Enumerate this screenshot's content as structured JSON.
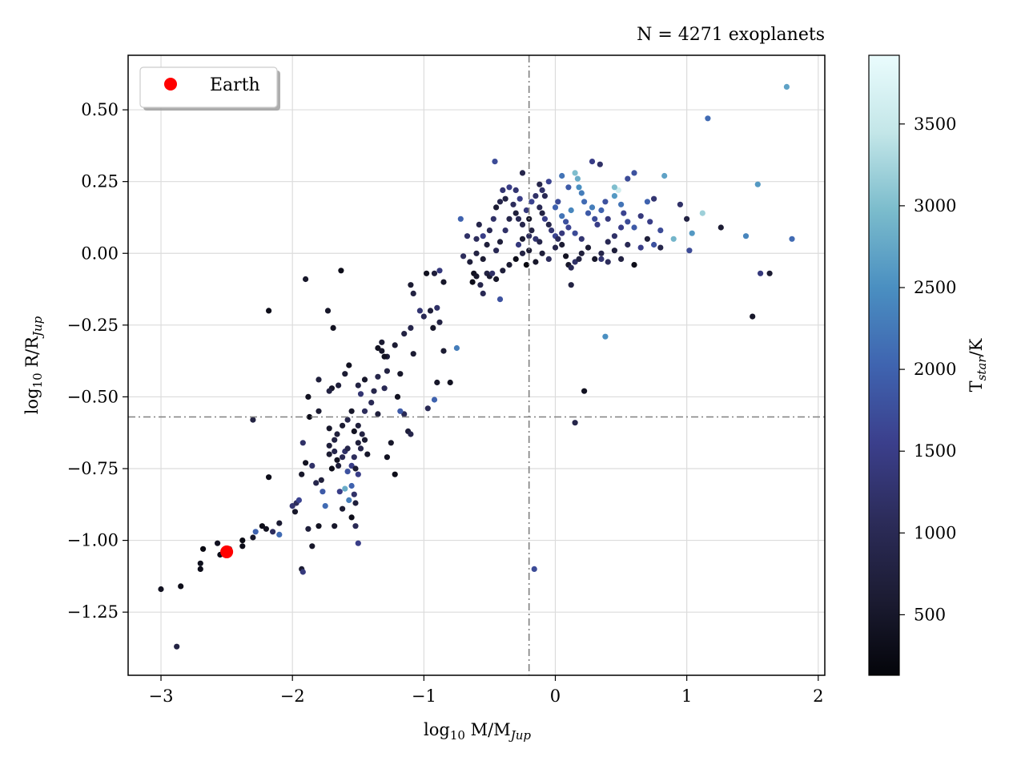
{
  "chart_data": {
    "type": "scatter",
    "title": "N = 4271 exoplanets",
    "xlabel": "log10 M/MJup",
    "ylabel": "log10 R/RJup",
    "xlim": [
      -3.25,
      2.05
    ],
    "ylim": [
      -1.47,
      0.69
    ],
    "xticks": [
      -3,
      -2,
      -1,
      0,
      1,
      2
    ],
    "xtick_labels": [
      "−3",
      "−2",
      "−1",
      "0",
      "1",
      "2"
    ],
    "yticks": [
      -1.25,
      -1.0,
      -0.75,
      -0.5,
      -0.25,
      0.0,
      0.25,
      0.5
    ],
    "ytick_labels": [
      "−1.25",
      "−1.00",
      "−0.75",
      "−0.50",
      "−0.25",
      "0.00",
      "0.25",
      "0.50"
    ],
    "grid": true,
    "reference_lines": {
      "vertical_x": -0.2,
      "horizontal_y": -0.57,
      "color": "#808080",
      "style": "dash-dot"
    },
    "legend": {
      "placement": "top-left",
      "entries": [
        {
          "label": "Earth",
          "color": "#ff0000"
        }
      ]
    },
    "highlight": {
      "name": "Earth",
      "x": -2.5,
      "y": -1.04,
      "color": "#ff0000"
    },
    "colorbar": {
      "label": "Tstar/K",
      "range": [
        130,
        3920
      ],
      "ticks": [
        500,
        1000,
        1500,
        2000,
        2500,
        3000,
        3500
      ],
      "colormap_stops": [
        "#04050a",
        "#1c1c33",
        "#2c2c5a",
        "#3b3f8c",
        "#3f64b0",
        "#4a8fc1",
        "#7bbccc",
        "#c3e6e8",
        "#eafcfd"
      ]
    },
    "points": [
      [
        -3.0,
        -1.17,
        400
      ],
      [
        -2.85,
        -1.16,
        300
      ],
      [
        -2.88,
        -1.37,
        800
      ],
      [
        -2.7,
        -1.1,
        300
      ],
      [
        -2.7,
        -1.08,
        350
      ],
      [
        -2.68,
        -1.03,
        200
      ],
      [
        -2.55,
        -1.05,
        300
      ],
      [
        -2.57,
        -1.01,
        400
      ],
      [
        -2.48,
        -1.03,
        600
      ],
      [
        -2.38,
        -1.02,
        300
      ],
      [
        -2.38,
        -1.0,
        250
      ],
      [
        -2.3,
        -0.99,
        500
      ],
      [
        -2.28,
        -0.97,
        2000
      ],
      [
        -2.23,
        -0.95,
        300
      ],
      [
        -2.2,
        -0.96,
        400
      ],
      [
        -2.15,
        -0.97,
        1100
      ],
      [
        -2.1,
        -0.94,
        600
      ],
      [
        -2.1,
        -0.98,
        2100
      ],
      [
        -2.0,
        -0.88,
        1300
      ],
      [
        -1.97,
        -0.87,
        1100
      ],
      [
        -1.95,
        -0.86,
        1600
      ],
      [
        -1.98,
        -0.9,
        500
      ],
      [
        -1.93,
        -1.1,
        600
      ],
      [
        -1.92,
        -1.11,
        1400
      ],
      [
        -1.88,
        -0.96,
        700
      ],
      [
        -1.85,
        -1.02,
        500
      ],
      [
        -1.8,
        -0.95,
        400
      ],
      [
        -1.75,
        -0.88,
        2100
      ],
      [
        -1.77,
        -0.83,
        1900
      ],
      [
        -1.82,
        -0.8,
        900
      ],
      [
        -1.78,
        -0.79,
        700
      ],
      [
        -1.85,
        -0.74,
        1200
      ],
      [
        -1.9,
        -0.73,
        400
      ],
      [
        -1.93,
        -0.77,
        500
      ],
      [
        -2.18,
        -0.78,
        300
      ],
      [
        -2.3,
        -0.58,
        800
      ],
      [
        -1.72,
        -0.67,
        700
      ],
      [
        -1.68,
        -0.65,
        800
      ],
      [
        -1.68,
        -0.69,
        900
      ],
      [
        -1.72,
        -0.7,
        600
      ],
      [
        -1.7,
        -0.75,
        300
      ],
      [
        -1.66,
        -0.72,
        400
      ],
      [
        -1.65,
        -0.74,
        700
      ],
      [
        -1.62,
        -0.71,
        1000
      ],
      [
        -1.6,
        -0.69,
        1200
      ],
      [
        -1.58,
        -0.68,
        900
      ],
      [
        -1.55,
        -0.74,
        1500
      ],
      [
        -1.52,
        -0.75,
        600
      ],
      [
        -1.58,
        -0.76,
        1800
      ],
      [
        -1.55,
        -0.81,
        2000
      ],
      [
        -1.5,
        -0.77,
        1500
      ],
      [
        -1.53,
        -0.84,
        1200
      ],
      [
        -1.57,
        -0.86,
        2300
      ],
      [
        -1.6,
        -0.82,
        2800
      ],
      [
        -1.64,
        -0.83,
        1500
      ],
      [
        -1.62,
        -0.89,
        600
      ],
      [
        -1.68,
        -0.95,
        500
      ],
      [
        -1.55,
        -0.92,
        300
      ],
      [
        -1.52,
        -0.87,
        700
      ],
      [
        -1.52,
        -0.95,
        1000
      ],
      [
        -1.5,
        -1.01,
        1500
      ],
      [
        -1.72,
        -0.61,
        500
      ],
      [
        -1.66,
        -0.63,
        700
      ],
      [
        -1.62,
        -0.6,
        600
      ],
      [
        -1.58,
        -0.58,
        900
      ],
      [
        -1.55,
        -0.55,
        500
      ],
      [
        -1.53,
        -0.62,
        400
      ],
      [
        -1.5,
        -0.6,
        700
      ],
      [
        -1.47,
        -0.63,
        800
      ],
      [
        -1.45,
        -0.65,
        600
      ],
      [
        -1.43,
        -0.7,
        500
      ],
      [
        -1.48,
        -0.68,
        900
      ],
      [
        -1.5,
        -0.66,
        700
      ],
      [
        -1.53,
        -0.71,
        1100
      ],
      [
        -1.45,
        -0.55,
        1100
      ],
      [
        -1.4,
        -0.52,
        1000
      ],
      [
        -1.38,
        -0.48,
        900
      ],
      [
        -1.35,
        -0.56,
        700
      ],
      [
        -1.48,
        -0.49,
        1300
      ],
      [
        -1.5,
        -0.46,
        800
      ],
      [
        -1.45,
        -0.44,
        500
      ],
      [
        -1.57,
        -0.39,
        400
      ],
      [
        -1.6,
        -0.42,
        600
      ],
      [
        -1.65,
        -0.46,
        700
      ],
      [
        -1.7,
        -0.47,
        500
      ],
      [
        -1.72,
        -0.48,
        800
      ],
      [
        -1.8,
        -0.55,
        600
      ],
      [
        -1.88,
        -0.5,
        400
      ],
      [
        -1.87,
        -0.57,
        300
      ],
      [
        -1.92,
        -0.66,
        1200
      ],
      [
        -1.3,
        -0.47,
        1000
      ],
      [
        -1.28,
        -0.41,
        800
      ],
      [
        -1.25,
        -0.66,
        500
      ],
      [
        -1.28,
        -0.71,
        400
      ],
      [
        -1.22,
        -0.77,
        300
      ],
      [
        -1.12,
        -0.62,
        700
      ],
      [
        -1.1,
        -0.63,
        900
      ],
      [
        -1.15,
        -0.56,
        1000
      ],
      [
        -1.18,
        -0.55,
        1900
      ],
      [
        -1.2,
        -0.5,
        400
      ],
      [
        -1.18,
        -0.42,
        500
      ],
      [
        -1.22,
        -0.32,
        600
      ],
      [
        -1.35,
        -0.33,
        400
      ],
      [
        -1.32,
        -0.34,
        500
      ],
      [
        -1.28,
        -0.36,
        700
      ],
      [
        -1.32,
        -0.31,
        600
      ],
      [
        -1.35,
        -0.43,
        900
      ],
      [
        -1.3,
        -0.36,
        400
      ],
      [
        -1.15,
        -0.28,
        800
      ],
      [
        -1.1,
        -0.26,
        900
      ],
      [
        -1.08,
        -0.35,
        600
      ],
      [
        -1.03,
        -0.2,
        1300
      ],
      [
        -1.0,
        -0.22,
        1000
      ],
      [
        -0.95,
        -0.2,
        700
      ],
      [
        -0.93,
        -0.26,
        500
      ],
      [
        -0.9,
        -0.19,
        1200
      ],
      [
        -0.88,
        -0.24,
        800
      ],
      [
        -1.1,
        -0.11,
        600
      ],
      [
        -1.08,
        -0.14,
        800
      ],
      [
        -0.98,
        -0.07,
        400
      ],
      [
        -0.92,
        -0.07,
        700
      ],
      [
        -0.88,
        -0.06,
        1400
      ],
      [
        -0.85,
        -0.1,
        500
      ],
      [
        -0.97,
        -0.54,
        1000
      ],
      [
        -0.9,
        -0.45,
        500
      ],
      [
        -0.85,
        -0.34,
        600
      ],
      [
        -0.8,
        -0.45,
        400
      ],
      [
        -0.75,
        -0.33,
        2300
      ],
      [
        -0.92,
        -0.51,
        2000
      ],
      [
        -1.8,
        -0.44,
        700
      ],
      [
        -1.73,
        -0.2,
        500
      ],
      [
        -1.69,
        -0.26,
        400
      ],
      [
        -1.9,
        -0.09,
        500
      ],
      [
        -2.18,
        -0.2,
        300
      ],
      [
        -1.63,
        -0.06,
        300
      ],
      [
        -0.72,
        0.12,
        2000
      ],
      [
        -0.67,
        0.06,
        1200
      ],
      [
        -0.7,
        -0.01,
        1100
      ],
      [
        -0.65,
        -0.03,
        700
      ],
      [
        -0.62,
        -0.07,
        400
      ],
      [
        -0.63,
        -0.1,
        300
      ],
      [
        -0.6,
        -0.08,
        500
      ],
      [
        -0.57,
        -0.11,
        900
      ],
      [
        -0.55,
        -0.14,
        1000
      ],
      [
        -0.52,
        -0.07,
        800
      ],
      [
        -0.5,
        -0.08,
        600
      ],
      [
        -0.48,
        -0.07,
        1200
      ],
      [
        -0.45,
        -0.09,
        500
      ],
      [
        -0.42,
        -0.16,
        1800
      ],
      [
        -0.4,
        -0.06,
        700
      ],
      [
        -0.35,
        -0.04,
        600
      ],
      [
        -0.3,
        -0.02,
        300
      ],
      [
        -0.25,
        0.0,
        800
      ],
      [
        -0.22,
        -0.04,
        200
      ],
      [
        -0.2,
        0.01,
        600
      ],
      [
        -0.15,
        -0.03,
        500
      ],
      [
        -0.1,
        0.0,
        700
      ],
      [
        -0.05,
        -0.02,
        1100
      ],
      [
        0.0,
        0.02,
        900
      ],
      [
        0.05,
        0.03,
        600
      ],
      [
        0.08,
        -0.01,
        400
      ],
      [
        0.1,
        -0.04,
        500
      ],
      [
        0.12,
        -0.05,
        1000
      ],
      [
        0.15,
        -0.03,
        1200
      ],
      [
        0.18,
        -0.02,
        800
      ],
      [
        0.2,
        0.0,
        700
      ],
      [
        0.25,
        0.02,
        600
      ],
      [
        0.3,
        -0.02,
        500
      ],
      [
        0.35,
        0.0,
        900
      ],
      [
        0.4,
        -0.03,
        1100
      ],
      [
        0.45,
        0.01,
        700
      ],
      [
        0.5,
        -0.02,
        800
      ],
      [
        0.55,
        0.03,
        1000
      ],
      [
        0.6,
        -0.04,
        300
      ],
      [
        0.65,
        0.02,
        1500
      ],
      [
        0.7,
        0.05,
        700
      ],
      [
        0.75,
        0.03,
        1800
      ],
      [
        0.8,
        0.02,
        900
      ],
      [
        0.12,
        -0.11,
        800
      ],
      [
        0.35,
        -0.02,
        1300
      ],
      [
        -0.6,
        0.05,
        1100
      ],
      [
        -0.58,
        0.1,
        900
      ],
      [
        -0.55,
        0.06,
        1500
      ],
      [
        -0.52,
        0.03,
        700
      ],
      [
        -0.5,
        0.08,
        1000
      ],
      [
        -0.47,
        0.12,
        1200
      ],
      [
        -0.45,
        0.16,
        600
      ],
      [
        -0.42,
        0.18,
        900
      ],
      [
        -0.4,
        0.22,
        1300
      ],
      [
        -0.38,
        0.19,
        800
      ],
      [
        -0.35,
        0.23,
        1500
      ],
      [
        -0.32,
        0.17,
        1100
      ],
      [
        -0.3,
        0.14,
        700
      ],
      [
        -0.28,
        0.12,
        1000
      ],
      [
        -0.25,
        0.1,
        900
      ],
      [
        -0.22,
        0.15,
        1400
      ],
      [
        -0.2,
        0.12,
        500
      ],
      [
        -0.18,
        0.18,
        1600
      ],
      [
        -0.15,
        0.2,
        1200
      ],
      [
        -0.12,
        0.16,
        1000
      ],
      [
        -0.1,
        0.14,
        800
      ],
      [
        -0.08,
        0.12,
        1500
      ],
      [
        -0.05,
        0.1,
        900
      ],
      [
        -0.03,
        0.08,
        1300
      ],
      [
        0.0,
        0.16,
        2000
      ],
      [
        0.02,
        0.18,
        1700
      ],
      [
        0.05,
        0.13,
        2200
      ],
      [
        0.08,
        0.11,
        1800
      ],
      [
        0.1,
        0.09,
        1600
      ],
      [
        0.12,
        0.15,
        2400
      ],
      [
        0.15,
        0.28,
        3000
      ],
      [
        0.17,
        0.26,
        2800
      ],
      [
        0.2,
        0.21,
        2300
      ],
      [
        0.22,
        0.18,
        2100
      ],
      [
        0.25,
        0.14,
        1900
      ],
      [
        0.28,
        0.16,
        2300
      ],
      [
        0.3,
        0.12,
        1700
      ],
      [
        0.32,
        0.1,
        1500
      ],
      [
        0.35,
        0.15,
        2000
      ],
      [
        0.38,
        0.18,
        1800
      ],
      [
        0.4,
        0.12,
        1400
      ],
      [
        0.45,
        0.2,
        2600
      ],
      [
        0.48,
        0.22,
        3600
      ],
      [
        0.5,
        0.17,
        2200
      ],
      [
        0.52,
        0.14,
        1600
      ],
      [
        0.55,
        0.26,
        1700
      ],
      [
        0.6,
        0.28,
        1800
      ],
      [
        0.65,
        0.13,
        1400
      ],
      [
        0.7,
        0.18,
        2000
      ],
      [
        0.72,
        0.11,
        1500
      ],
      [
        0.75,
        0.19,
        1300
      ],
      [
        0.8,
        0.08,
        1700
      ],
      [
        0.83,
        0.27,
        2700
      ],
      [
        0.9,
        0.05,
        2900
      ],
      [
        0.95,
        0.17,
        1200
      ],
      [
        1.0,
        0.12,
        800
      ],
      [
        1.02,
        0.01,
        1700
      ],
      [
        1.04,
        0.07,
        2600
      ],
      [
        1.12,
        0.14,
        3200
      ],
      [
        1.16,
        0.47,
        2100
      ],
      [
        1.26,
        0.09,
        600
      ],
      [
        1.45,
        0.06,
        2400
      ],
      [
        1.5,
        -0.22,
        500
      ],
      [
        1.54,
        0.24,
        2600
      ],
      [
        1.56,
        -0.07,
        1400
      ],
      [
        1.63,
        -0.07,
        600
      ],
      [
        1.76,
        0.58,
        2700
      ],
      [
        1.8,
        0.05,
        2100
      ],
      [
        -0.46,
        0.32,
        1700
      ],
      [
        -0.25,
        0.28,
        900
      ],
      [
        0.28,
        0.32,
        1500
      ],
      [
        0.34,
        0.31,
        1200
      ],
      [
        0.38,
        -0.29,
        2500
      ],
      [
        0.15,
        -0.59,
        900
      ],
      [
        0.22,
        -0.48,
        400
      ],
      [
        -0.16,
        -1.1,
        1700
      ],
      [
        0.45,
        0.23,
        3000
      ],
      [
        0.6,
        0.09,
        1900
      ],
      [
        -0.1,
        0.22,
        1200
      ],
      [
        -0.05,
        0.25,
        1600
      ],
      [
        -0.08,
        0.2,
        1000
      ],
      [
        -0.12,
        0.24,
        900
      ],
      [
        -0.3,
        0.22,
        1300
      ],
      [
        -0.27,
        0.19,
        1500
      ],
      [
        0.05,
        0.27,
        2200
      ],
      [
        0.1,
        0.23,
        1900
      ],
      [
        0.18,
        0.23,
        2500
      ],
      [
        -0.2,
        0.06,
        1100
      ],
      [
        -0.18,
        0.08,
        800
      ],
      [
        -0.15,
        0.05,
        1300
      ],
      [
        -0.12,
        0.04,
        900
      ],
      [
        0.0,
        0.06,
        1600
      ],
      [
        0.02,
        0.05,
        1100
      ],
      [
        0.05,
        0.07,
        1400
      ],
      [
        0.15,
        0.07,
        1700
      ],
      [
        0.2,
        0.05,
        1300
      ],
      [
        -0.35,
        0.12,
        900
      ],
      [
        -0.38,
        0.08,
        1200
      ],
      [
        -0.42,
        0.04,
        700
      ],
      [
        -0.45,
        0.01,
        1000
      ],
      [
        -0.28,
        0.03,
        1400
      ],
      [
        -0.25,
        0.05,
        600
      ],
      [
        0.4,
        0.04,
        1000
      ],
      [
        0.45,
        0.06,
        1200
      ],
      [
        0.5,
        0.09,
        1500
      ],
      [
        0.55,
        0.11,
        1700
      ],
      [
        -0.6,
        0.0,
        800
      ],
      [
        -0.55,
        -0.02,
        600
      ]
    ]
  }
}
